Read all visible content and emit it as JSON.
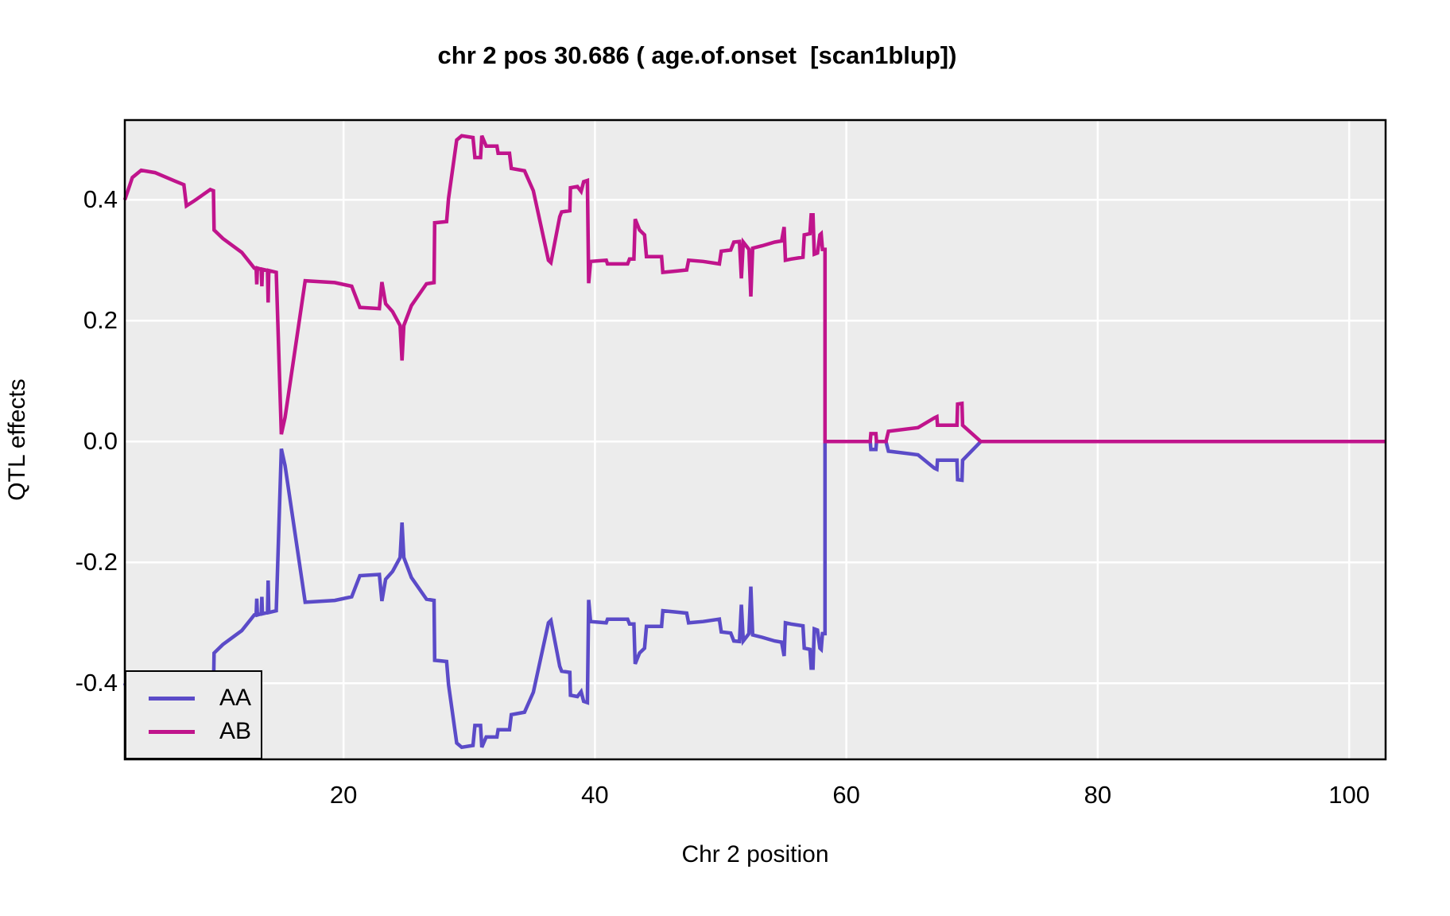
{
  "chart_data": {
    "type": "line",
    "title": "chr 2 pos 30.686 ( age.of.onset  [scan1blup])",
    "xlabel": "Chr 2 position",
    "ylabel": "QTL effects",
    "xlim": [
      2.6,
      102.9
    ],
    "ylim": [
      -0.526,
      0.532
    ],
    "x_ticks": [
      20,
      40,
      60,
      80,
      100
    ],
    "x_tick_labels": [
      "20",
      "40",
      "60",
      "80",
      "100"
    ],
    "y_ticks": [
      0.4,
      0.2,
      0.0,
      -0.2,
      -0.4
    ],
    "y_tick_labels": [
      "0.4",
      "0.2",
      "0.0",
      "-0.2",
      "-0.4"
    ],
    "grid": true,
    "panel_bg": "#ececec",
    "grid_color": "#ffffff",
    "border_color": "#000000",
    "legend": {
      "position": "bottom-left"
    },
    "series": [
      {
        "name": "AA",
        "color": "#5b4bc8",
        "points": [
          [
            2.6,
            -0.4
          ],
          [
            3.2,
            -0.437
          ],
          [
            3.9,
            -0.449
          ],
          [
            5.0,
            -0.445
          ],
          [
            6.6,
            -0.431
          ],
          [
            7.3,
            -0.425
          ],
          [
            7.5,
            -0.39
          ],
          [
            8.1,
            -0.398
          ],
          [
            9.4,
            -0.417
          ],
          [
            9.65,
            -0.415
          ],
          [
            9.7,
            -0.35
          ],
          [
            10.4,
            -0.336
          ],
          [
            11.9,
            -0.313
          ],
          [
            12.9,
            -0.287
          ],
          [
            13.05,
            -0.287
          ],
          [
            13.1,
            -0.26
          ],
          [
            13.15,
            -0.287
          ],
          [
            13.45,
            -0.285
          ],
          [
            13.5,
            -0.257
          ],
          [
            13.55,
            -0.285
          ],
          [
            13.95,
            -0.283
          ],
          [
            14.0,
            -0.23
          ],
          [
            14.05,
            -0.283
          ],
          [
            14.65,
            -0.28
          ],
          [
            15.05,
            -0.012
          ],
          [
            15.35,
            -0.04
          ],
          [
            16.95,
            -0.266
          ],
          [
            19.3,
            -0.263
          ],
          [
            20.65,
            -0.257
          ],
          [
            21.3,
            -0.222
          ],
          [
            22.85,
            -0.22
          ],
          [
            23.05,
            -0.264
          ],
          [
            23.35,
            -0.228
          ],
          [
            23.9,
            -0.215
          ],
          [
            24.5,
            -0.192
          ],
          [
            24.65,
            -0.134
          ],
          [
            24.8,
            -0.192
          ],
          [
            25.4,
            -0.225
          ],
          [
            26.6,
            -0.261
          ],
          [
            27.2,
            -0.263
          ],
          [
            27.25,
            -0.362
          ],
          [
            28.2,
            -0.364
          ],
          [
            28.35,
            -0.402
          ],
          [
            29.0,
            -0.499
          ],
          [
            29.4,
            -0.506
          ],
          [
            30.3,
            -0.503
          ],
          [
            30.45,
            -0.47
          ],
          [
            30.9,
            -0.47
          ],
          [
            31.0,
            -0.506
          ],
          [
            31.35,
            -0.489
          ],
          [
            32.2,
            -0.489
          ],
          [
            32.3,
            -0.477
          ],
          [
            33.2,
            -0.477
          ],
          [
            33.35,
            -0.452
          ],
          [
            34.4,
            -0.448
          ],
          [
            35.1,
            -0.415
          ],
          [
            36.3,
            -0.3
          ],
          [
            36.5,
            -0.296
          ],
          [
            37.2,
            -0.372
          ],
          [
            37.35,
            -0.38
          ],
          [
            38.0,
            -0.382
          ],
          [
            38.05,
            -0.42
          ],
          [
            38.6,
            -0.422
          ],
          [
            38.9,
            -0.414
          ],
          [
            39.1,
            -0.43
          ],
          [
            39.4,
            -0.432
          ],
          [
            39.5,
            -0.262
          ],
          [
            39.65,
            -0.298
          ],
          [
            40.9,
            -0.3
          ],
          [
            41.0,
            -0.294
          ],
          [
            42.6,
            -0.294
          ],
          [
            42.75,
            -0.302
          ],
          [
            43.1,
            -0.302
          ],
          [
            43.2,
            -0.368
          ],
          [
            43.55,
            -0.35
          ],
          [
            43.95,
            -0.342
          ],
          [
            44.1,
            -0.306
          ],
          [
            45.3,
            -0.306
          ],
          [
            45.4,
            -0.28
          ],
          [
            46.4,
            -0.282
          ],
          [
            47.3,
            -0.284
          ],
          [
            47.45,
            -0.3
          ],
          [
            48.6,
            -0.298
          ],
          [
            49.9,
            -0.294
          ],
          [
            50.05,
            -0.315
          ],
          [
            50.8,
            -0.317
          ],
          [
            51.05,
            -0.33
          ],
          [
            51.5,
            -0.331
          ],
          [
            51.65,
            -0.27
          ],
          [
            51.8,
            -0.33
          ],
          [
            52.25,
            -0.318
          ],
          [
            52.4,
            -0.24
          ],
          [
            52.55,
            -0.32
          ],
          [
            53.3,
            -0.324
          ],
          [
            54.3,
            -0.33
          ],
          [
            54.85,
            -0.332
          ],
          [
            55.05,
            -0.355
          ],
          [
            55.15,
            -0.3
          ],
          [
            55.6,
            -0.302
          ],
          [
            56.55,
            -0.305
          ],
          [
            56.65,
            -0.342
          ],
          [
            57.1,
            -0.344
          ],
          [
            57.2,
            -0.375
          ],
          [
            57.35,
            -0.375
          ],
          [
            57.45,
            -0.31
          ],
          [
            57.7,
            -0.312
          ],
          [
            57.9,
            -0.342
          ],
          [
            58.0,
            -0.344
          ],
          [
            58.1,
            -0.318
          ],
          [
            58.3,
            -0.318
          ],
          [
            58.3,
            0.0
          ],
          [
            61.9,
            0.0
          ],
          [
            61.95,
            -0.013
          ],
          [
            62.35,
            -0.013
          ],
          [
            62.4,
            0.0
          ],
          [
            63.15,
            0.0
          ],
          [
            63.35,
            -0.016
          ],
          [
            65.7,
            -0.022
          ],
          [
            67.0,
            -0.044
          ],
          [
            67.2,
            -0.046
          ],
          [
            67.25,
            -0.031
          ],
          [
            68.8,
            -0.031
          ],
          [
            68.85,
            -0.063
          ],
          [
            69.2,
            -0.064
          ],
          [
            69.25,
            -0.031
          ],
          [
            70.7,
            0.0
          ],
          [
            102.9,
            0.0
          ]
        ]
      },
      {
        "name": "AB",
        "color": "#c0148c",
        "points": [
          [
            2.6,
            0.4
          ],
          [
            3.2,
            0.437
          ],
          [
            3.9,
            0.449
          ],
          [
            5.0,
            0.445
          ],
          [
            6.6,
            0.431
          ],
          [
            7.3,
            0.425
          ],
          [
            7.5,
            0.39
          ],
          [
            8.1,
            0.398
          ],
          [
            9.4,
            0.417
          ],
          [
            9.65,
            0.415
          ],
          [
            9.7,
            0.35
          ],
          [
            10.4,
            0.336
          ],
          [
            11.9,
            0.313
          ],
          [
            12.9,
            0.287
          ],
          [
            13.05,
            0.287
          ],
          [
            13.1,
            0.26
          ],
          [
            13.15,
            0.287
          ],
          [
            13.45,
            0.285
          ],
          [
            13.5,
            0.257
          ],
          [
            13.55,
            0.285
          ],
          [
            13.95,
            0.283
          ],
          [
            14.0,
            0.23
          ],
          [
            14.05,
            0.283
          ],
          [
            14.65,
            0.28
          ],
          [
            15.05,
            0.012
          ],
          [
            15.35,
            0.04
          ],
          [
            16.95,
            0.266
          ],
          [
            19.3,
            0.263
          ],
          [
            20.65,
            0.257
          ],
          [
            21.3,
            0.222
          ],
          [
            22.85,
            0.22
          ],
          [
            23.05,
            0.264
          ],
          [
            23.35,
            0.228
          ],
          [
            23.9,
            0.215
          ],
          [
            24.5,
            0.192
          ],
          [
            24.65,
            0.134
          ],
          [
            24.8,
            0.192
          ],
          [
            25.4,
            0.225
          ],
          [
            26.6,
            0.261
          ],
          [
            27.2,
            0.263
          ],
          [
            27.25,
            0.362
          ],
          [
            28.2,
            0.364
          ],
          [
            28.35,
            0.402
          ],
          [
            29.0,
            0.499
          ],
          [
            29.4,
            0.506
          ],
          [
            30.3,
            0.503
          ],
          [
            30.45,
            0.47
          ],
          [
            30.9,
            0.47
          ],
          [
            31.0,
            0.506
          ],
          [
            31.35,
            0.489
          ],
          [
            32.2,
            0.489
          ],
          [
            32.3,
            0.477
          ],
          [
            33.2,
            0.477
          ],
          [
            33.35,
            0.452
          ],
          [
            34.4,
            0.448
          ],
          [
            35.1,
            0.415
          ],
          [
            36.3,
            0.3
          ],
          [
            36.5,
            0.296
          ],
          [
            37.2,
            0.372
          ],
          [
            37.35,
            0.38
          ],
          [
            38.0,
            0.382
          ],
          [
            38.05,
            0.42
          ],
          [
            38.6,
            0.422
          ],
          [
            38.9,
            0.414
          ],
          [
            39.1,
            0.43
          ],
          [
            39.4,
            0.432
          ],
          [
            39.5,
            0.262
          ],
          [
            39.65,
            0.298
          ],
          [
            40.9,
            0.3
          ],
          [
            41.0,
            0.294
          ],
          [
            42.6,
            0.294
          ],
          [
            42.75,
            0.302
          ],
          [
            43.1,
            0.302
          ],
          [
            43.2,
            0.368
          ],
          [
            43.55,
            0.35
          ],
          [
            43.95,
            0.342
          ],
          [
            44.1,
            0.306
          ],
          [
            45.3,
            0.306
          ],
          [
            45.4,
            0.28
          ],
          [
            46.4,
            0.282
          ],
          [
            47.3,
            0.284
          ],
          [
            47.45,
            0.3
          ],
          [
            48.6,
            0.298
          ],
          [
            49.9,
            0.294
          ],
          [
            50.05,
            0.315
          ],
          [
            50.8,
            0.317
          ],
          [
            51.05,
            0.33
          ],
          [
            51.5,
            0.331
          ],
          [
            51.65,
            0.27
          ],
          [
            51.8,
            0.33
          ],
          [
            52.25,
            0.318
          ],
          [
            52.4,
            0.24
          ],
          [
            52.55,
            0.32
          ],
          [
            53.3,
            0.324
          ],
          [
            54.3,
            0.33
          ],
          [
            54.85,
            0.332
          ],
          [
            55.05,
            0.355
          ],
          [
            55.15,
            0.3
          ],
          [
            55.6,
            0.302
          ],
          [
            56.55,
            0.305
          ],
          [
            56.65,
            0.342
          ],
          [
            57.1,
            0.344
          ],
          [
            57.2,
            0.375
          ],
          [
            57.35,
            0.375
          ],
          [
            57.45,
            0.31
          ],
          [
            57.7,
            0.312
          ],
          [
            57.9,
            0.342
          ],
          [
            58.0,
            0.344
          ],
          [
            58.1,
            0.318
          ],
          [
            58.3,
            0.318
          ],
          [
            58.3,
            0.0
          ],
          [
            61.9,
            0.0
          ],
          [
            61.95,
            0.013
          ],
          [
            62.35,
            0.013
          ],
          [
            62.4,
            0.0
          ],
          [
            63.15,
            0.0
          ],
          [
            63.35,
            0.017
          ],
          [
            65.7,
            0.023
          ],
          [
            67.0,
            0.039
          ],
          [
            67.2,
            0.041
          ],
          [
            67.25,
            0.027
          ],
          [
            68.8,
            0.027
          ],
          [
            68.85,
            0.062
          ],
          [
            69.2,
            0.063
          ],
          [
            69.25,
            0.027
          ],
          [
            70.7,
            0.0
          ],
          [
            102.9,
            0.0
          ]
        ]
      }
    ]
  }
}
